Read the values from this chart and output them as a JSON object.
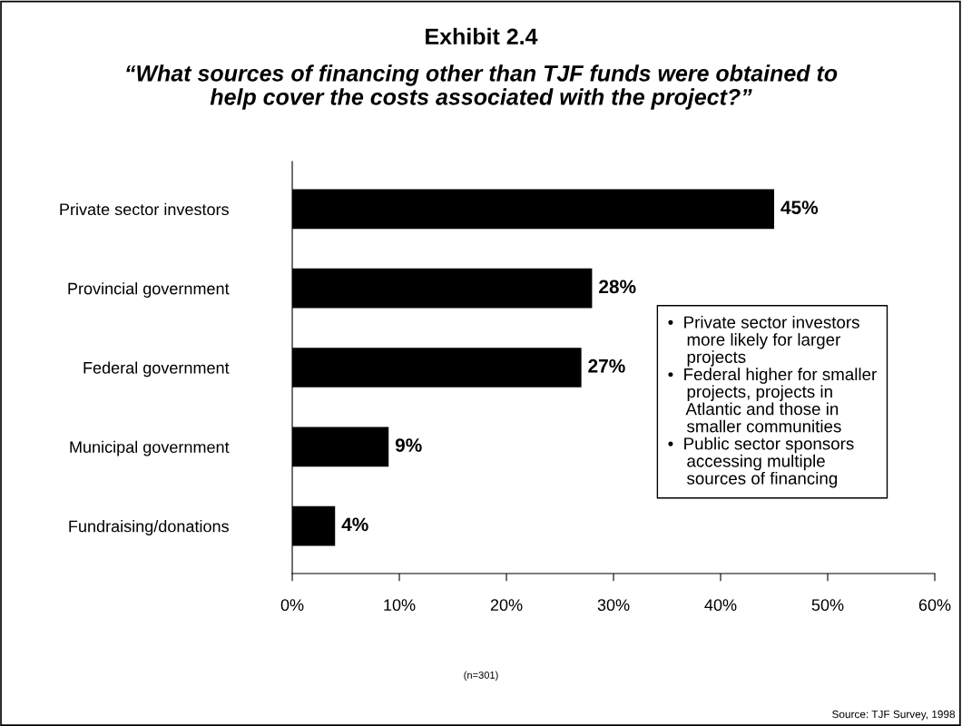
{
  "chart_data": {
    "type": "bar",
    "orientation": "horizontal",
    "title": "Exhibit 2.4",
    "subtitle": "“What sources of financing other than TJF funds were obtained to\nhelp cover the costs associated with the project?”",
    "categories": [
      "Private sector investors",
      "Provincial government",
      "Federal government",
      "Municipal government",
      "Fundraising/donations"
    ],
    "values": [
      45,
      28,
      27,
      9,
      4
    ],
    "value_labels": [
      "45%",
      "28%",
      "27%",
      "9%",
      "4%"
    ],
    "color": "#000000",
    "xlim": [
      0,
      60
    ],
    "xticks": [
      {
        "value": 0,
        "label": "0%"
      },
      {
        "value": 10,
        "label": "10%"
      },
      {
        "value": 20,
        "label": "20%"
      },
      {
        "value": 30,
        "label": "30%"
      },
      {
        "value": 40,
        "label": "40%"
      },
      {
        "value": 50,
        "label": "50%"
      },
      {
        "value": 60,
        "label": "60%"
      }
    ],
    "grid": false,
    "legend": false,
    "annotations": [
      "•  Private sector investors\n    more likely for larger\n    projects\n•  Federal higher for smaller\n    projects, projects in\n    Atlantic and those in\n    smaller communities\n•  Public sector sponsors\n    accessing multiple\n    sources of financing",
      "(n=301)",
      "Source: TJF Survey, 1998"
    ]
  }
}
